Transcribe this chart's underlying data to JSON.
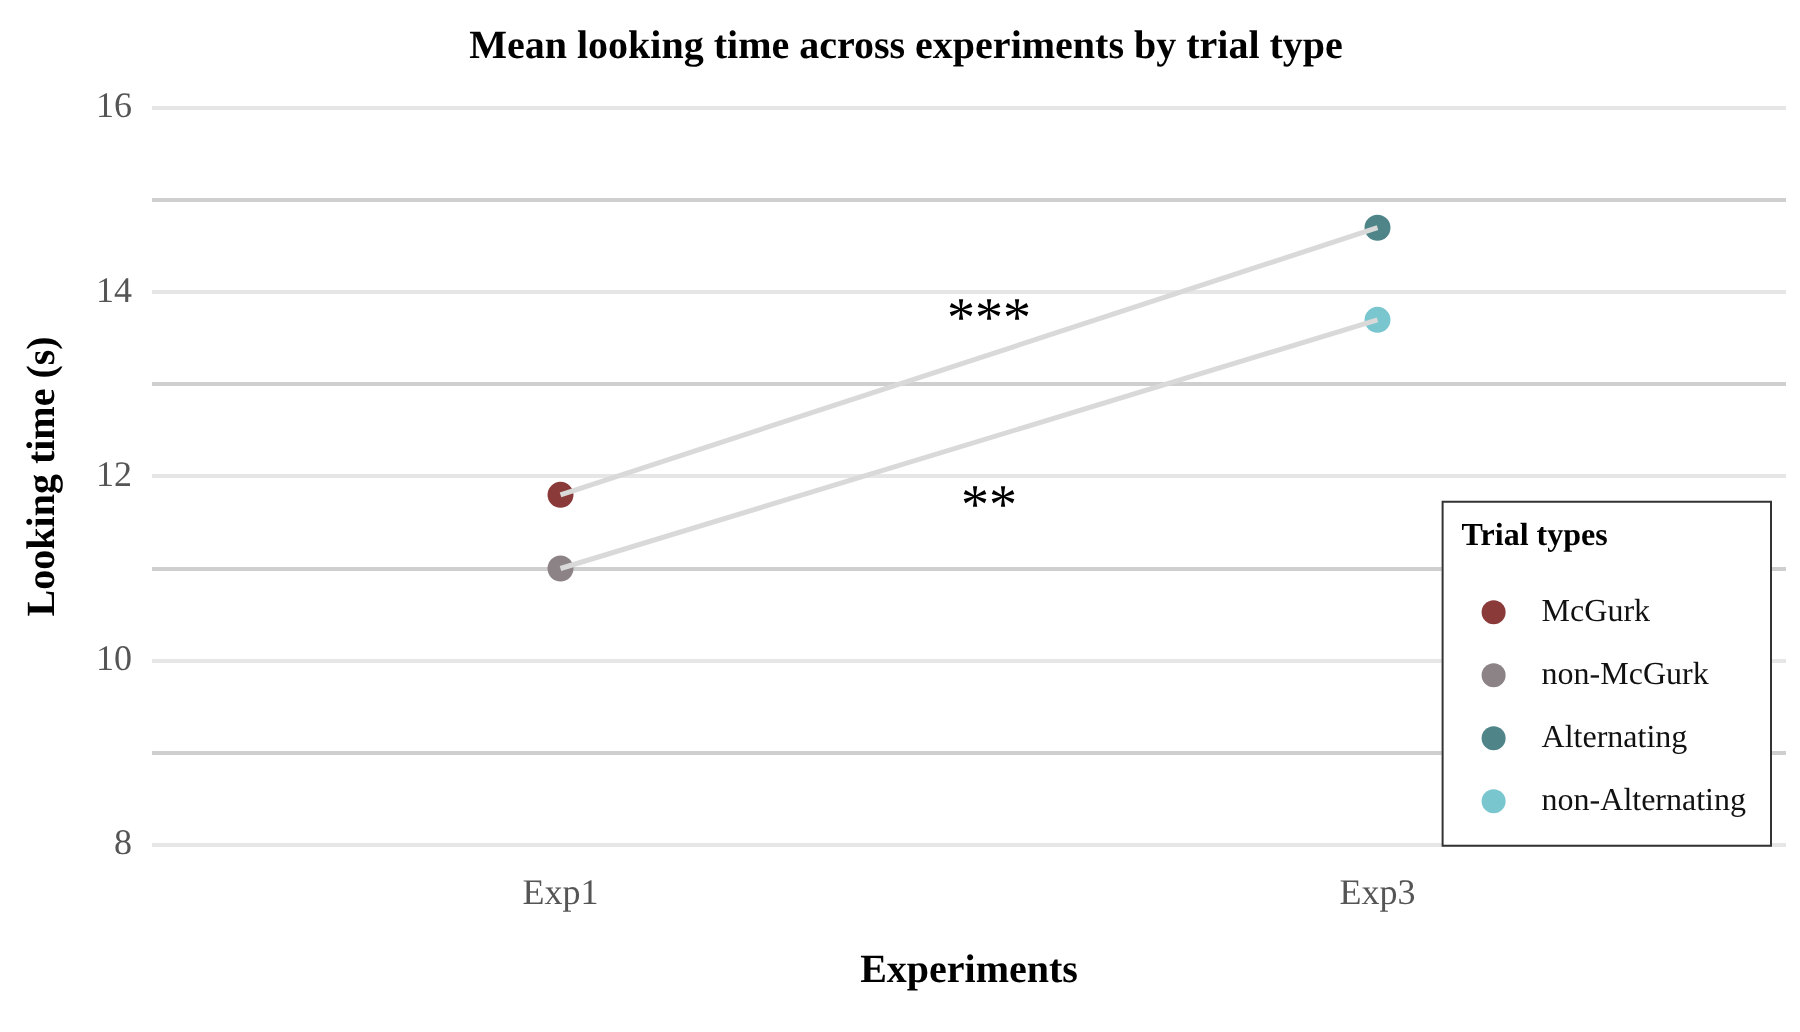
{
  "chart_data": {
    "type": "scatter",
    "title": "Mean looking time across experiments by trial type",
    "xlabel": "Experiments",
    "ylabel": "Looking time (s)",
    "legend_title": "Trial types",
    "legend": "bottom right",
    "marker": "circle",
    "grid": "y",
    "categories": [
      "Exp1",
      "Exp3"
    ],
    "ylim": [
      8,
      16
    ],
    "yticks": [
      8,
      {
        "value": 9,
        "label": null
      },
      10,
      {
        "value": 11,
        "label": null
      },
      12,
      {
        "value": 13,
        "label": null
      },
      14,
      {
        "value": 15,
        "label": null
      },
      16
    ],
    "annotations": [
      "***",
      "**"
    ],
    "series": [
      {
        "type": "line",
        "color": "#d9d9d9",
        "marker": "none",
        "values": [
          11.8,
          14.7
        ]
      },
      {
        "type": "line",
        "color": "#d9d9d9",
        "marker": "none",
        "values": [
          11.0,
          13.7
        ]
      },
      {
        "name": "McGurk",
        "color": "#8b3a3a",
        "x": [
          "Exp1"
        ],
        "values": [
          11.8
        ]
      },
      {
        "name": "non-McGurk",
        "color": "#8c8386",
        "x": [
          "Exp1"
        ],
        "values": [
          11.0
        ]
      },
      {
        "name": "Alternating",
        "color": "#4f8589",
        "x": [
          "Exp3"
        ],
        "values": [
          14.7
        ]
      },
      {
        "name": "non-Alternating",
        "color": "#79c6cf",
        "x": [
          "Exp3"
        ],
        "values": [
          13.7
        ]
      }
    ]
  }
}
